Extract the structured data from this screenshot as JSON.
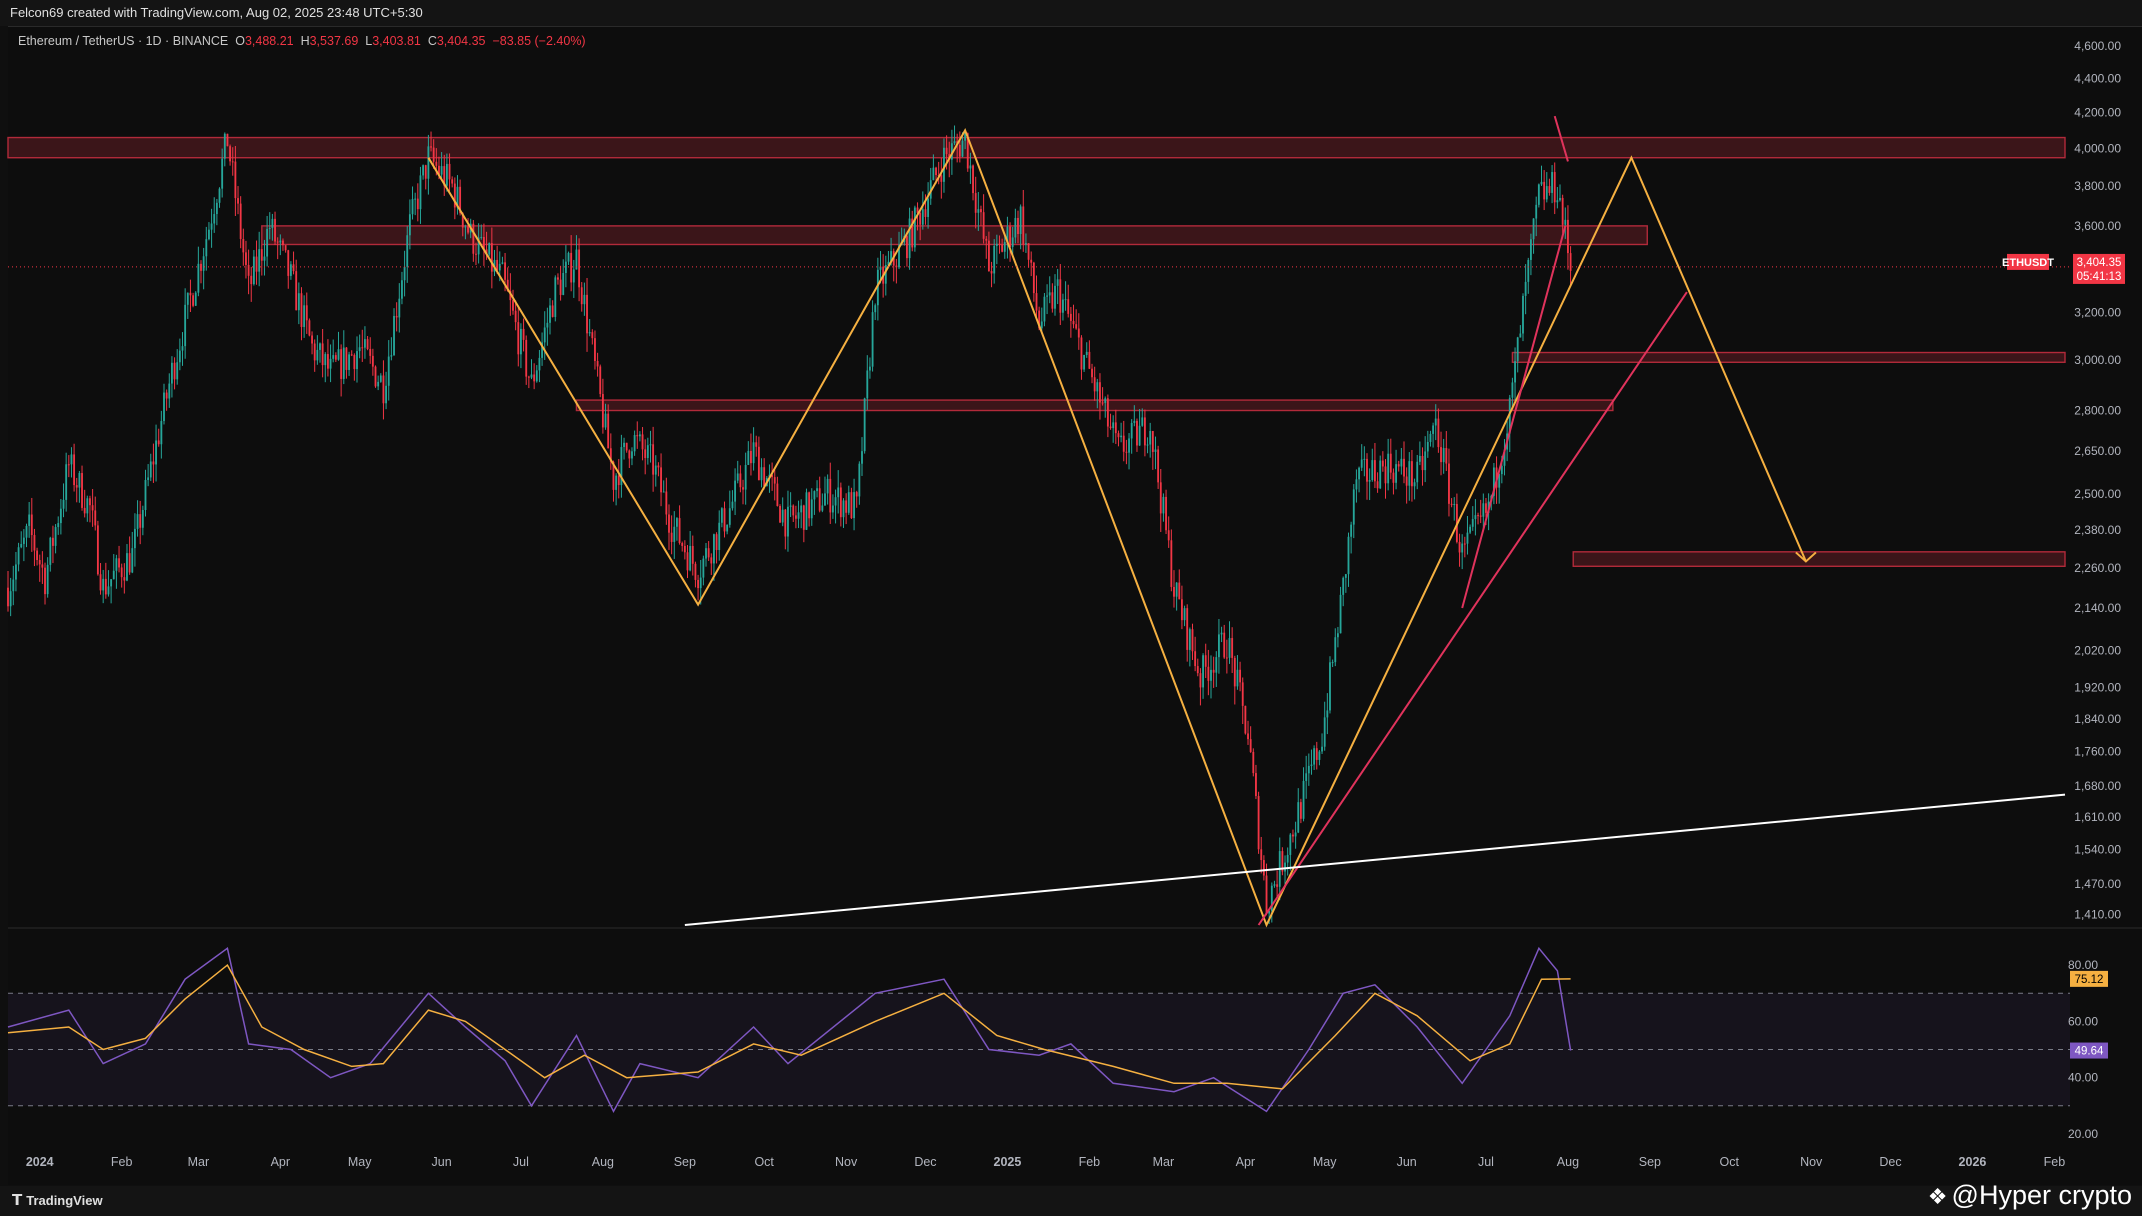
{
  "header": {
    "caption": "Felcon69 created with TradingView.com, Aug 02, 2025 23:48 UTC+5:30"
  },
  "legend": {
    "symbol": "Ethereum / TetherUS · 1D · BINANCE",
    "o_key": "O",
    "o_val": "3,488.21",
    "h_key": "H",
    "h_val": "3,537.69",
    "l_key": "L",
    "l_val": "3,403.81",
    "c_key": "C",
    "c_val": "3,404.35",
    "change": "−83.85 (−2.40%)"
  },
  "footer": {
    "brand": "TradingView",
    "watermark": "@Hyper crypto"
  },
  "colors": {
    "up": "#26a69a",
    "down": "#f23645",
    "zone": "#b22a3a",
    "pattern": "#f5b041",
    "trend": "#e0335c",
    "support": "#ffffff",
    "rsi": "#7e57c2",
    "rsi_ma": "#f5b041",
    "tag_price": "#f23645",
    "tag_rsi_ma": "#f5b041",
    "tag_rsi": "#7e57c2"
  },
  "chart_data": {
    "type": "candlestick",
    "symbol": "ETHUSDT",
    "interval": "1D",
    "price_axis": {
      "scale": "log",
      "ticks": [
        "4,600.00",
        "4,400.00",
        "4,200.00",
        "4,000.00",
        "3,800.00",
        "3,600.00",
        "3,400.00",
        "3,200.00",
        "3,000.00",
        "2,800.00",
        "2,650.00",
        "2,500.00",
        "2,380.00",
        "2,260.00",
        "2,140.00",
        "2,020.00",
        "1,920.00",
        "1,840.00",
        "1,760.00",
        "1,680.00",
        "1,610.00",
        "1,540.00",
        "1,470.00",
        "1,410.00"
      ],
      "range": [
        1390,
        4700
      ]
    },
    "time_axis": {
      "ticks": [
        "2024",
        "Feb",
        "Mar",
        "Apr",
        "May",
        "Jun",
        "Jul",
        "Aug",
        "Sep",
        "Oct",
        "Nov",
        "Dec",
        "2025",
        "Feb",
        "Mar",
        "Apr",
        "May",
        "Jun",
        "Jul",
        "Aug",
        "Sep",
        "Oct",
        "Nov",
        "Dec",
        "2026",
        "Feb"
      ],
      "range": [
        "2023-12-20",
        "2026-02-05"
      ]
    },
    "last_price": {
      "label": "ETHUSDT",
      "value": "3,404.35",
      "countdown": "05:41:13"
    },
    "price_path": [
      [
        "2023-12-20",
        2200
      ],
      [
        "2023-12-28",
        2380
      ],
      [
        "2024-01-03",
        2230
      ],
      [
        "2024-01-12",
        2600
      ],
      [
        "2024-01-20",
        2450
      ],
      [
        "2024-01-25",
        2200
      ],
      [
        "2024-02-05",
        2300
      ],
      [
        "2024-02-20",
        2950
      ],
      [
        "2024-03-05",
        3600
      ],
      [
        "2024-03-12",
        4050
      ],
      [
        "2024-03-20",
        3300
      ],
      [
        "2024-03-28",
        3600
      ],
      [
        "2024-04-05",
        3350
      ],
      [
        "2024-04-13",
        3050
      ],
      [
        "2024-04-20",
        2950
      ],
      [
        "2024-05-01",
        3050
      ],
      [
        "2024-05-10",
        2900
      ],
      [
        "2024-05-20",
        3600
      ],
      [
        "2024-05-27",
        3950
      ],
      [
        "2024-06-05",
        3800
      ],
      [
        "2024-06-12",
        3550
      ],
      [
        "2024-06-24",
        3350
      ],
      [
        "2024-07-05",
        2900
      ],
      [
        "2024-07-14",
        3300
      ],
      [
        "2024-07-22",
        3450
      ],
      [
        "2024-08-05",
        2550
      ],
      [
        "2024-08-12",
        2700
      ],
      [
        "2024-08-20",
        2600
      ],
      [
        "2024-08-27",
        2400
      ],
      [
        "2024-09-06",
        2250
      ],
      [
        "2024-09-18",
        2450
      ],
      [
        "2024-09-27",
        2650
      ],
      [
        "2024-10-10",
        2400
      ],
      [
        "2024-10-25",
        2500
      ],
      [
        "2024-11-05",
        2450
      ],
      [
        "2024-11-12",
        3300
      ],
      [
        "2024-11-25",
        3550
      ],
      [
        "2024-12-08",
        3950
      ],
      [
        "2024-12-16",
        4050
      ],
      [
        "2024-12-25",
        3400
      ],
      [
        "2025-01-06",
        3650
      ],
      [
        "2025-01-13",
        3150
      ],
      [
        "2025-01-20",
        3300
      ],
      [
        "2025-02-01",
        2950
      ],
      [
        "2025-02-12",
        2650
      ],
      [
        "2025-02-24",
        2750
      ],
      [
        "2025-03-05",
        2200
      ],
      [
        "2025-03-15",
        1950
      ],
      [
        "2025-03-25",
        2050
      ],
      [
        "2025-04-02",
        1800
      ],
      [
        "2025-04-09",
        1430
      ],
      [
        "2025-04-20",
        1600
      ],
      [
        "2025-04-30",
        1800
      ],
      [
        "2025-05-08",
        2200
      ],
      [
        "2025-05-13",
        2550
      ],
      [
        "2025-05-25",
        2600
      ],
      [
        "2025-06-05",
        2550
      ],
      [
        "2025-06-12",
        2750
      ],
      [
        "2025-06-22",
        2300
      ],
      [
        "2025-07-02",
        2450
      ],
      [
        "2025-07-10",
        2800
      ],
      [
        "2025-07-16",
        3300
      ],
      [
        "2025-07-21",
        3750
      ],
      [
        "2025-07-28",
        3800
      ],
      [
        "2025-08-02",
        3404
      ]
    ],
    "zones": [
      {
        "from": "2023-12-20",
        "to": "2026-02-05",
        "low": 3950,
        "high": 4060
      },
      {
        "from": "2024-03-25",
        "to": "2025-08-31",
        "low": 3510,
        "high": 3600
      },
      {
        "from": "2024-07-22",
        "to": "2025-08-18",
        "low": 2800,
        "high": 2840
      },
      {
        "from": "2025-07-11",
        "to": "2026-02-05",
        "low": 2990,
        "high": 3030
      },
      {
        "from": "2025-08-03",
        "to": "2026-02-05",
        "low": 2265,
        "high": 2310
      }
    ],
    "zigzag": [
      [
        "2024-05-27",
        3950
      ],
      [
        "2024-09-06",
        2150
      ],
      [
        "2024-12-16",
        4100
      ],
      [
        "2025-04-09",
        1390
      ],
      [
        "2025-08-25",
        3950
      ],
      [
        "2025-10-30",
        2280
      ]
    ],
    "trendlines": [
      {
        "points": [
          [
            "2025-04-06",
            1390
          ],
          [
            "2025-09-15",
            3290
          ]
        ]
      },
      {
        "points": [
          [
            "2025-06-22",
            2140
          ],
          [
            "2025-07-31",
            3600
          ]
        ]
      },
      {
        "points": [
          [
            "2025-07-27",
            4180
          ],
          [
            "2025-08-01",
            3930
          ]
        ]
      }
    ],
    "support_line": {
      "points": [
        [
          "2024-09-01",
          1390
        ],
        [
          "2026-02-05",
          1660
        ]
      ]
    },
    "rsi": {
      "ticks": [
        "80.00",
        "60.00",
        "40.00",
        "20.00"
      ],
      "range": [
        15,
        90
      ],
      "bands": [
        70,
        50,
        30
      ],
      "value": "49.64",
      "ma_value": "75.12",
      "series": [
        [
          "2023-12-20",
          58
        ],
        [
          "2024-01-12",
          64
        ],
        [
          "2024-01-25",
          45
        ],
        [
          "2024-02-10",
          52
        ],
        [
          "2024-02-25",
          75
        ],
        [
          "2024-03-12",
          86
        ],
        [
          "2024-03-20",
          52
        ],
        [
          "2024-04-05",
          50
        ],
        [
          "2024-04-20",
          40
        ],
        [
          "2024-05-05",
          45
        ],
        [
          "2024-05-27",
          70
        ],
        [
          "2024-06-10",
          58
        ],
        [
          "2024-06-25",
          46
        ],
        [
          "2024-07-05",
          30
        ],
        [
          "2024-07-22",
          55
        ],
        [
          "2024-08-05",
          28
        ],
        [
          "2024-08-15",
          45
        ],
        [
          "2024-09-06",
          40
        ],
        [
          "2024-09-27",
          58
        ],
        [
          "2024-10-10",
          45
        ],
        [
          "2024-11-12",
          70
        ],
        [
          "2024-12-08",
          75
        ],
        [
          "2024-12-25",
          50
        ],
        [
          "2025-01-13",
          48
        ],
        [
          "2025-01-25",
          52
        ],
        [
          "2025-02-10",
          38
        ],
        [
          "2025-03-05",
          35
        ],
        [
          "2025-03-20",
          40
        ],
        [
          "2025-04-09",
          28
        ],
        [
          "2025-04-25",
          50
        ],
        [
          "2025-05-08",
          70
        ],
        [
          "2025-05-20",
          73
        ],
        [
          "2025-06-05",
          58
        ],
        [
          "2025-06-22",
          38
        ],
        [
          "2025-07-10",
          62
        ],
        [
          "2025-07-21",
          86
        ],
        [
          "2025-07-28",
          78
        ],
        [
          "2025-08-02",
          49.64
        ]
      ],
      "ma_series": [
        [
          "2023-12-20",
          56
        ],
        [
          "2024-01-12",
          58
        ],
        [
          "2024-01-25",
          50
        ],
        [
          "2024-02-10",
          54
        ],
        [
          "2024-02-25",
          68
        ],
        [
          "2024-03-12",
          80
        ],
        [
          "2024-03-25",
          58
        ],
        [
          "2024-04-10",
          50
        ],
        [
          "2024-04-28",
          44
        ],
        [
          "2024-05-10",
          45
        ],
        [
          "2024-05-27",
          64
        ],
        [
          "2024-06-10",
          60
        ],
        [
          "2024-06-25",
          50
        ],
        [
          "2024-07-10",
          40
        ],
        [
          "2024-07-25",
          48
        ],
        [
          "2024-08-10",
          40
        ],
        [
          "2024-09-06",
          42
        ],
        [
          "2024-09-27",
          52
        ],
        [
          "2024-10-15",
          48
        ],
        [
          "2024-11-12",
          60
        ],
        [
          "2024-12-08",
          70
        ],
        [
          "2024-12-28",
          55
        ],
        [
          "2025-01-15",
          50
        ],
        [
          "2025-02-10",
          44
        ],
        [
          "2025-03-05",
          38
        ],
        [
          "2025-03-25",
          38
        ],
        [
          "2025-04-15",
          36
        ],
        [
          "2025-05-05",
          55
        ],
        [
          "2025-05-20",
          70
        ],
        [
          "2025-06-05",
          62
        ],
        [
          "2025-06-25",
          46
        ],
        [
          "2025-07-10",
          52
        ],
        [
          "2025-07-22",
          75
        ],
        [
          "2025-08-02",
          75.12
        ]
      ]
    }
  }
}
